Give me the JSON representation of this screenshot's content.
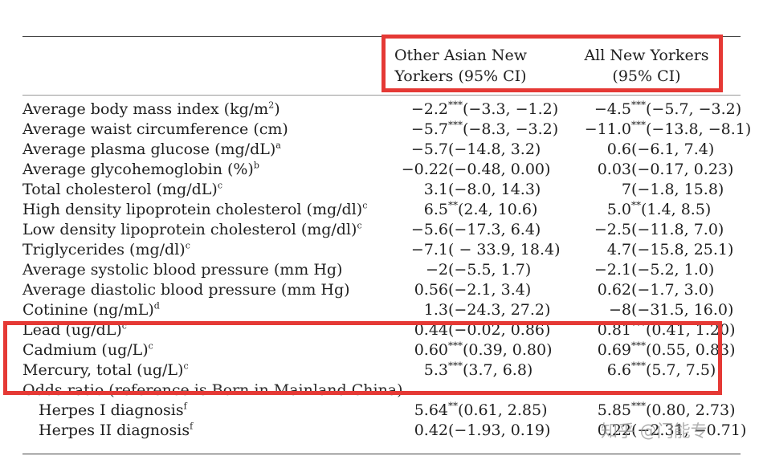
{
  "columns": {
    "c1": [
      "Other Asian New",
      "Yorkers (95% CI)"
    ],
    "c2": [
      "All New Yorkers",
      "(95% CI)"
    ]
  },
  "rows": [
    {
      "label": "Average body mass index (kg/m",
      "sup": "2",
      "tail": ")",
      "c1": {
        "est": "−2.2",
        "stars": "***",
        "ci": "(−3.3, −1.2)"
      },
      "c2": {
        "est": "−4.5",
        "stars": "***",
        "ci": "(−5.7, −3.2)"
      }
    },
    {
      "label": "Average waist circumference (cm)",
      "sup": "",
      "tail": "",
      "c1": {
        "est": "−5.7",
        "stars": "***",
        "ci": "(−8.3, −3.2)"
      },
      "c2": {
        "est": "−11.0",
        "stars": "***",
        "ci": "(−13.8, −8.1)"
      }
    },
    {
      "label": "Average plasma glucose (mg/dL)",
      "sup": "a",
      "tail": "",
      "c1": {
        "est": "−5.7",
        "stars": "",
        "ci": "(−14.8, 3.2)"
      },
      "c2": {
        "est": "0.6",
        "stars": "",
        "ci": "(−6.1, 7.4)"
      }
    },
    {
      "label": "Average glycohemoglobin (%)",
      "sup": "b",
      "tail": "",
      "c1": {
        "est": "−0.22",
        "stars": "",
        "ci": "(−0.48, 0.00)"
      },
      "c2": {
        "est": "0.03",
        "stars": "",
        "ci": "(−0.17, 0.23)"
      }
    },
    {
      "label": "Total cholesterol (mg/dL)",
      "sup": "c",
      "tail": "",
      "c1": {
        "est": "3.1",
        "stars": "",
        "ci": "(−8.0, 14.3)"
      },
      "c2": {
        "est": "7",
        "stars": "",
        "ci": "(−1.8, 15.8)"
      }
    },
    {
      "label": "High density lipoprotein cholesterol (mg/dl)",
      "sup": "c",
      "tail": "",
      "c1": {
        "est": "6.5",
        "stars": "**",
        "ci": "(2.4, 10.6)"
      },
      "c2": {
        "est": "5.0",
        "stars": "**",
        "ci": "(1.4, 8.5)"
      }
    },
    {
      "label": "Low density lipoprotein cholesterol (mg/dl)",
      "sup": "c",
      "tail": "",
      "c1": {
        "est": "−5.6",
        "stars": "",
        "ci": "(−17.3, 6.4)"
      },
      "c2": {
        "est": "−2.5",
        "stars": "",
        "ci": "(−11.8, 7.0)"
      }
    },
    {
      "label": "Triglycerides (mg/dl)",
      "sup": "c",
      "tail": "",
      "c1": {
        "est": "−7.1",
        "stars": "",
        "ci": "( − 33.9, 18.4)"
      },
      "c2": {
        "est": "4.7",
        "stars": "",
        "ci": "(−15.8, 25.1)"
      }
    },
    {
      "label": "Average systolic blood pressure (mm Hg)",
      "sup": "",
      "tail": "",
      "c1": {
        "est": "−2",
        "stars": "",
        "ci": "(−5.5, 1.7)"
      },
      "c2": {
        "est": "−2.1",
        "stars": "",
        "ci": "(−5.2, 1.0)"
      }
    },
    {
      "label": "Average diastolic blood pressure (mm Hg)",
      "sup": "",
      "tail": "",
      "c1": {
        "est": "0.56",
        "stars": "",
        "ci": "(−2.1, 3.4)"
      },
      "c2": {
        "est": "0.62",
        "stars": "",
        "ci": "(−1.7, 3.0)"
      }
    },
    {
      "label": "Cotinine (ng/mL)",
      "sup": "d",
      "tail": "",
      "c1": {
        "est": "1.3",
        "stars": "",
        "ci": "(−24.3, 27.2)"
      },
      "c2": {
        "est": "−8",
        "stars": "",
        "ci": "(−31.5, 16.0)"
      }
    },
    {
      "label": "Lead (ug/dL)",
      "sup": "c",
      "tail": "",
      "c1": {
        "est": "0.44",
        "stars": "",
        "ci": "(−0.02, 0.86)"
      },
      "c2": {
        "est": "0.81",
        "stars": "***",
        "ci": "(0.41, 1.20)"
      }
    },
    {
      "label": "Cadmium (ug/L)",
      "sup": "c",
      "tail": "",
      "c1": {
        "est": "0.60",
        "stars": "***",
        "ci": "(0.39, 0.80)"
      },
      "c2": {
        "est": "0.69",
        "stars": "***",
        "ci": "(0.55, 0.83)"
      }
    },
    {
      "label": "Mercury, total (ug/L)",
      "sup": "c",
      "tail": "",
      "c1": {
        "est": "5.3",
        "stars": "***",
        "ci": "(3.7, 6.8)"
      },
      "c2": {
        "est": "6.6",
        "stars": "***",
        "ci": "(5.7, 7.5)"
      }
    }
  ],
  "odds_section": "Odds ratio (reference is Born in Mainland China)",
  "odds_rows": [
    {
      "label": "Herpes I diagnosis",
      "sup": "f",
      "c1": {
        "est": "5.64",
        "stars": "**",
        "ci": "(0.61, 2.85)"
      },
      "c2": {
        "est": "5.85",
        "stars": "***",
        "ci": "(0.80, 2.73)"
      }
    },
    {
      "label": "Herpes II diagnosis",
      "sup": "f",
      "c1": {
        "est": "0.42",
        "stars": "",
        "ci": "(−1.93, 0.19)"
      },
      "c2": {
        "est": "0.22",
        "stars": "",
        "ci": "(−2.31, −0.71)"
      }
    }
  ],
  "watermark": "知乎 @门能专",
  "highlight_color": "#e53935"
}
